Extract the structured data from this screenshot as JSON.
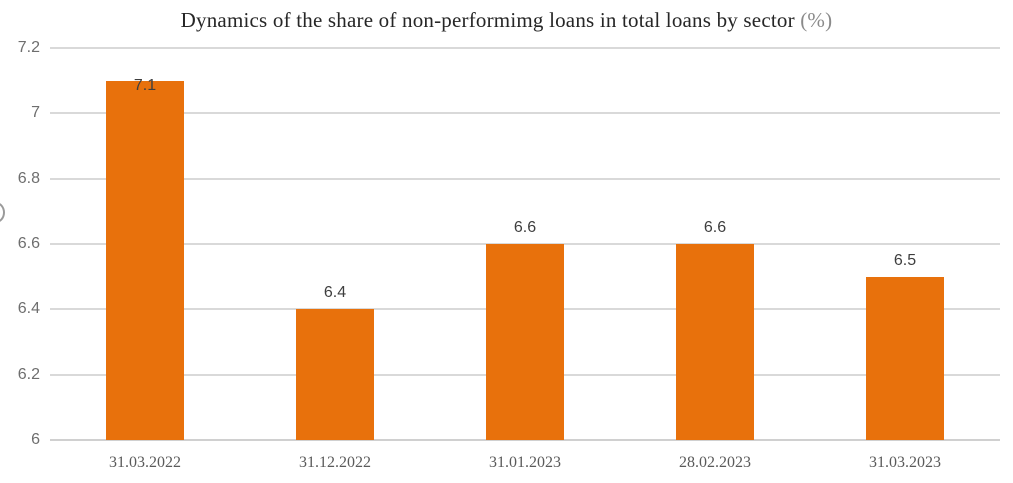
{
  "chart_data": {
    "type": "bar",
    "title": "Dynamics of the share of non-performimg loans in total loans by sector",
    "title_suffix": "(%)",
    "categories": [
      "31.03.2022",
      "31.12.2022",
      "31.01.2023",
      "28.02.2023",
      "31.03.2023"
    ],
    "values": [
      7.1,
      6.4,
      6.6,
      6.6,
      6.5
    ],
    "data_labels": [
      "7.1",
      "6.4",
      "6.6",
      "6.6",
      "6.5"
    ],
    "xlabel": "",
    "ylabel": "",
    "ylim": [
      6,
      7.2
    ],
    "y_ticks": [
      6,
      6.2,
      6.4,
      6.6,
      6.8,
      7,
      7.2
    ],
    "y_tick_labels": [
      "6",
      "6.2",
      "6.4",
      "6.6",
      "6.8",
      "7",
      "7.2"
    ],
    "grid": true,
    "legend": false,
    "colors": {
      "bar": "#e8710c",
      "grid": "#d9d9d9",
      "axis_line": "#d0d0d0",
      "title": "#262626",
      "title_suffix": "#8a8a8a",
      "y_label": "#6e6e6e",
      "x_label": "#5a5a5a",
      "data_label": "#3e3e3e"
    }
  }
}
